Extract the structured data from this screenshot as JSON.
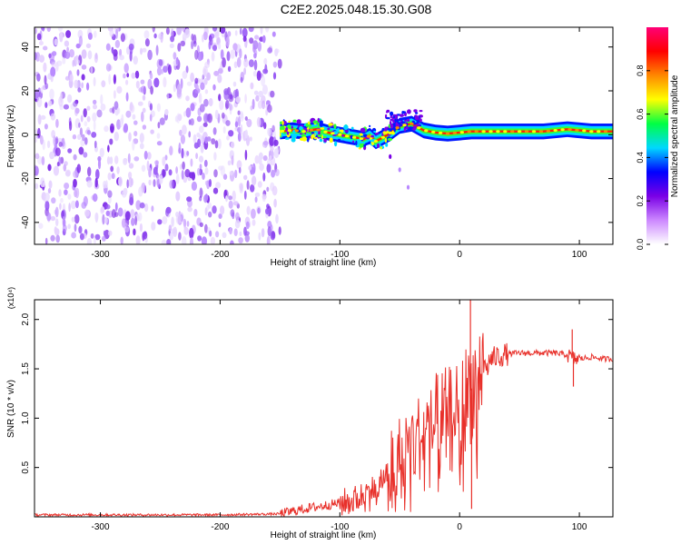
{
  "title": "C2E2.2025.048.15.30.G08",
  "chart_data": [
    {
      "type": "heatmap",
      "xlabel": "Height of straight line (km)",
      "ylabel": "Frequency (Hz)",
      "xlim": [
        -355,
        128
      ],
      "ylim": [
        -50,
        49
      ],
      "xticks": [
        -300,
        -200,
        -100,
        0,
        100
      ],
      "yticks": [
        -40,
        -20,
        0,
        20,
        40
      ],
      "colorbar": {
        "label": "Normalized spectral amplitude",
        "range": [
          0,
          1
        ],
        "ticks": [
          "0.0",
          "0.2",
          "0.4",
          "0.6",
          "0.8"
        ],
        "colors": [
          "#ffffff",
          "#cc88ff",
          "#7a00e6",
          "#0000ff",
          "#00d8ff",
          "#00ff44",
          "#ffff00",
          "#ff8800",
          "#ff0000",
          "#ff0077"
        ]
      },
      "noise_region": {
        "x": [
          -355,
          -150
        ],
        "y": [
          -50,
          49
        ]
      },
      "ridge": {
        "x": [
          -150,
          -140,
          -130,
          -120,
          -110,
          -100,
          -90,
          -80,
          -75,
          -70,
          -60,
          -50,
          -40,
          -30,
          -20,
          -10,
          0,
          10,
          30,
          50,
          70,
          90,
          110,
          128
        ],
        "y": [
          1.5,
          2,
          1.5,
          2.5,
          1,
          0,
          -1,
          -2,
          -0.5,
          -3,
          0,
          4,
          5,
          2,
          1,
          0.5,
          1,
          1.5,
          1.5,
          1.5,
          1.5,
          2.5,
          1.5,
          1.5
        ]
      },
      "side_branch": {
        "x": [
          -68,
          -58,
          -50,
          -43
        ],
        "y": [
          -5,
          -10,
          -16,
          -24
        ]
      }
    },
    {
      "type": "line",
      "xlabel": "Height of straight line (km)",
      "ylabel": "SNR (10 * v/v)",
      "y_multiplier": "(x10⁴)",
      "xlim": [
        -355,
        128
      ],
      "ylim": [
        0,
        2.2
      ],
      "xticks": [
        -300,
        -200,
        -100,
        0,
        100
      ],
      "yticks": [
        "0.5",
        "1.0",
        "1.5",
        "2.0"
      ],
      "color": "#e8302a",
      "series": [
        {
          "x": [
            -355,
            -300,
            -250,
            -200,
            -150,
            -130,
            -110,
            -100,
            -90,
            -80,
            -70,
            -60,
            -50,
            -40,
            -30,
            -20,
            -10,
            0,
            5,
            10,
            15,
            20,
            25,
            30,
            40,
            50,
            60,
            70,
            80,
            90,
            95,
            100,
            110,
            120,
            128
          ],
          "y": [
            0.02,
            0.02,
            0.02,
            0.02,
            0.03,
            0.08,
            0.12,
            0.14,
            0.16,
            0.22,
            0.3,
            0.45,
            0.6,
            0.75,
            0.85,
            0.92,
            0.98,
            1.05,
            1.2,
            1.3,
            1.42,
            1.52,
            1.58,
            1.62,
            1.65,
            1.66,
            1.66,
            1.66,
            1.66,
            1.64,
            1.6,
            1.6,
            1.62,
            1.6,
            1.6
          ]
        }
      ],
      "spikes": [
        {
          "x": 9,
          "y": 2.2
        },
        {
          "x": 10,
          "y": 0.08
        },
        {
          "x": 94,
          "y": 1.9
        },
        {
          "x": 95,
          "y": 1.32
        }
      ]
    }
  ]
}
